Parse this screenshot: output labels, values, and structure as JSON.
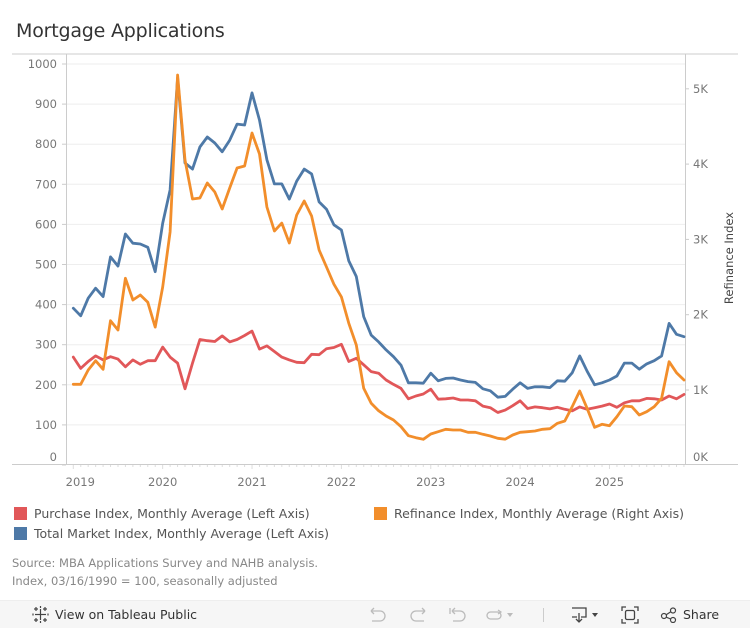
{
  "title": "Mortgage Applications",
  "chart_data": {
    "type": "line",
    "title": "Mortgage Applications",
    "x_start": "2019-01",
    "frequency": "monthly",
    "x_tick_labels": [
      "2019",
      "2020",
      "2021",
      "2022",
      "2023",
      "2024",
      "2025"
    ],
    "left_axis": {
      "label": "",
      "ticks": [
        0,
        100,
        200,
        300,
        400,
        500,
        600,
        700,
        800,
        900,
        1000
      ],
      "ylim": [
        0,
        1000
      ]
    },
    "right_axis": {
      "label": "Refinance Index",
      "ticks": [
        "0K",
        "1K",
        "2K",
        "3K",
        "4K",
        "5K"
      ],
      "tick_values": [
        0,
        1000,
        2000,
        3000,
        4000,
        5000
      ],
      "ylim": [
        0,
        5350
      ]
    },
    "grid": true,
    "legend_position": "bottom",
    "series": [
      {
        "name": "Purchase Index, Monthly Average (Left Axis)",
        "axis": "left",
        "color": "#e15759",
        "values": [
          269,
          241,
          258,
          272,
          262,
          270,
          264,
          245,
          262,
          251,
          260,
          260,
          294,
          269,
          254,
          190,
          254,
          313,
          310,
          308,
          322,
          307,
          313,
          323,
          334,
          289,
          297,
          283,
          269,
          262,
          256,
          255,
          276,
          275,
          290,
          293,
          301,
          258,
          266,
          250,
          233,
          229,
          212,
          201,
          191,
          165,
          172,
          177,
          189,
          164,
          165,
          167,
          162,
          162,
          160,
          147,
          143,
          131,
          137,
          148,
          160,
          141,
          145,
          143,
          140,
          144,
          139,
          135,
          145,
          139,
          143,
          147,
          152,
          144,
          155,
          160,
          160,
          166,
          165,
          162,
          172,
          165,
          176
        ]
      },
      {
        "name": "Total Market Index, Monthly Average (Left Axis)",
        "axis": "left",
        "color": "#4e79a7",
        "values": [
          391,
          372,
          416,
          441,
          420,
          519,
          496,
          576,
          553,
          551,
          543,
          482,
          603,
          686,
          965,
          753,
          738,
          793,
          818,
          803,
          781,
          810,
          850,
          848,
          928,
          860,
          761,
          701,
          701,
          663,
          708,
          738,
          726,
          656,
          638,
          599,
          586,
          509,
          470,
          370,
          324,
          307,
          287,
          270,
          249,
          205,
          205,
          204,
          229,
          210,
          216,
          217,
          212,
          208,
          206,
          190,
          185,
          169,
          171,
          189,
          205,
          191,
          195,
          195,
          193,
          210,
          209,
          230,
          272,
          234,
          200,
          205,
          212,
          222,
          254,
          254,
          239,
          252,
          260,
          272,
          353,
          326,
          320
        ]
      },
      {
        "name": "Refinance Index, Monthly Average (Right Axis)",
        "axis": "right",
        "color": "#f28e2b",
        "values": [
          1076,
          1076,
          1266,
          1389,
          1275,
          1920,
          1797,
          2483,
          2195,
          2262,
          2165,
          1835,
          2368,
          3098,
          5183,
          4054,
          3536,
          3550,
          3749,
          3629,
          3404,
          3683,
          3948,
          3975,
          4413,
          4134,
          3430,
          3111,
          3217,
          2952,
          3324,
          3510,
          3311,
          2859,
          2633,
          2405,
          2237,
          1886,
          1598,
          1023,
          823,
          725,
          655,
          602,
          513,
          393,
          367,
          345,
          416,
          446,
          478,
          469,
          469,
          438,
          438,
          412,
          389,
          359,
          347,
          402,
          438,
          446,
          455,
          478,
          486,
          558,
          588,
          778,
          987,
          757,
          505,
          544,
          526,
          645,
          788,
          778,
          668,
          712,
          778,
          890,
          1376,
          1230,
          1133
        ]
      }
    ]
  },
  "legend": {
    "purchase": {
      "label": "Purchase Index, Monthly Average (Left Axis)",
      "color": "#e15759"
    },
    "total": {
      "label": "Total Market Index, Monthly Average (Left Axis)",
      "color": "#4e79a7"
    },
    "refinance": {
      "label": "Refinance Index, Monthly Average (Right Axis)",
      "color": "#f28e2b"
    }
  },
  "source": {
    "line1": "Source: MBA Applications Survey and NAHB analysis.",
    "line2": "Index, 03/16/1990 = 100, seasonally adjusted"
  },
  "toolbar": {
    "view_on_public": "View on Tableau Public",
    "share": "Share",
    "icons": [
      "undo-icon",
      "redo-icon",
      "revert-icon",
      "refresh-icon",
      "download-icon",
      "fullscreen-icon",
      "share-icon"
    ]
  }
}
